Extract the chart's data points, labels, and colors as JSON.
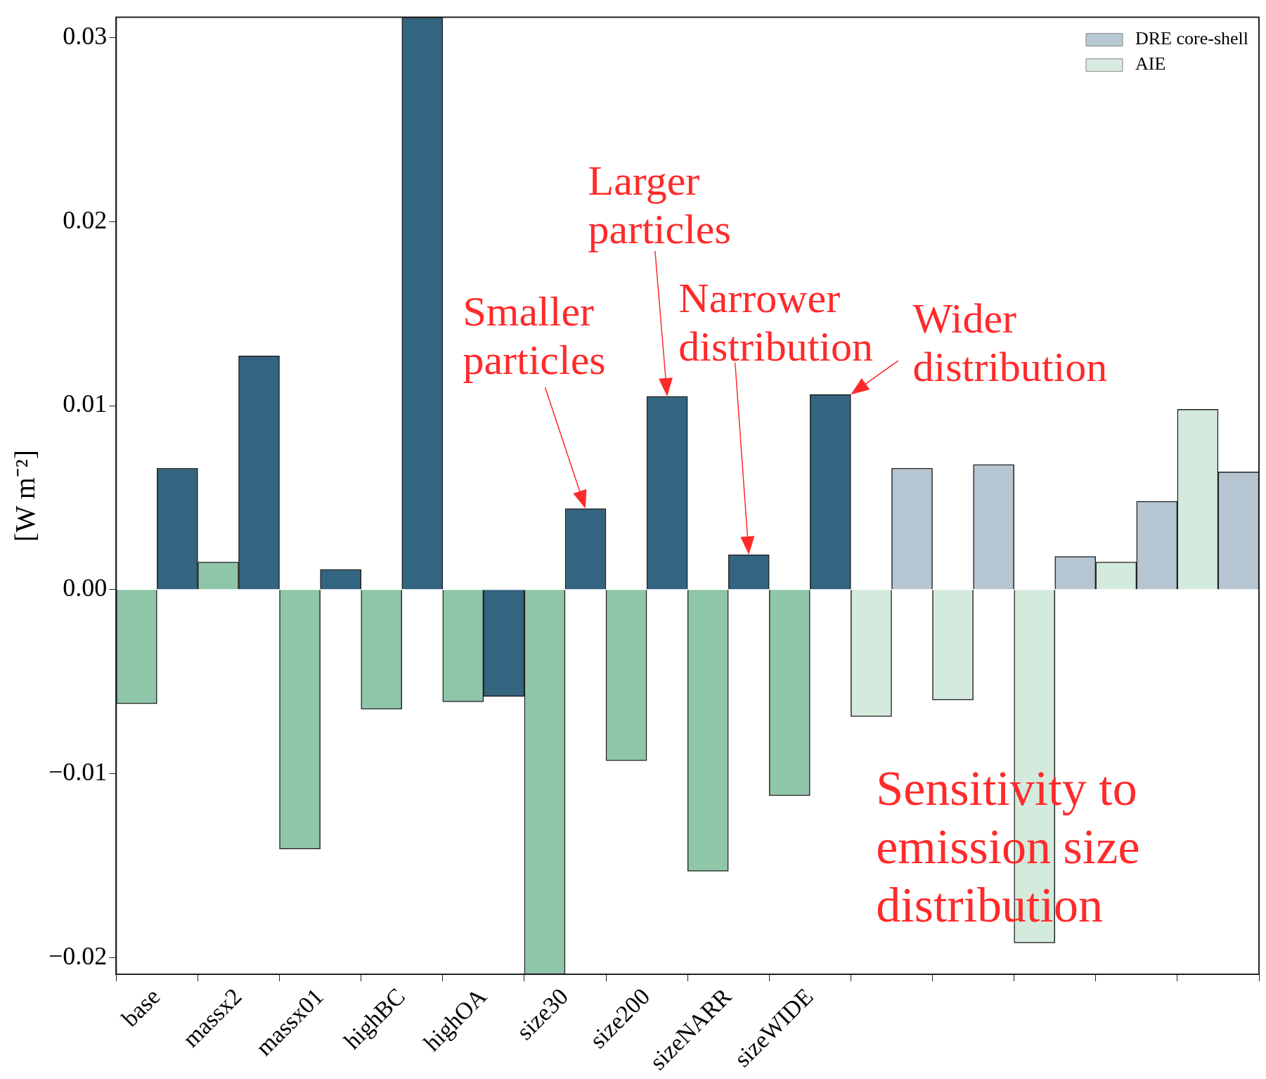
{
  "chart_data": {
    "type": "bar",
    "ylabel": "[W m⁻²]",
    "categories": [
      "base",
      "massx2",
      "massx01",
      "highBC",
      "highOA",
      "size30",
      "size200",
      "sizeNARR",
      "sizeWIDE",
      null,
      null,
      null,
      null,
      null
    ],
    "series": [
      {
        "name": "DRE core-shell",
        "color": "#346580",
        "colors": [
          "#346580",
          "#346580",
          "#346580",
          "#346580",
          "#346580",
          "#346580",
          "#346580",
          "#346580",
          "#346580",
          "#b5c5d2",
          "#b5c5d2",
          "#b5c5d2",
          "#b5c5d2",
          "#b5c5d2"
        ],
        "values": [
          0.0066,
          0.0127,
          0.0011,
          0.0311,
          -0.0058,
          0.0044,
          0.0105,
          0.0019,
          0.0106,
          0.0066,
          0.0068,
          0.0018,
          0.0048,
          0.0064
        ]
      },
      {
        "name": "AIE",
        "color": "#8fc6a9",
        "colors": [
          "#8fc6a9",
          "#8fc6a9",
          "#8fc6a9",
          "#8fc6a9",
          "#8fc6a9",
          "#8fc6a9",
          "#8fc6a9",
          "#8fc6a9",
          "#8fc6a9",
          "#d4eadd",
          "#d4eadd",
          "#d4eadd",
          "#d4eadd",
          "#d4eadd"
        ],
        "values": [
          -0.0062,
          0.0015,
          -0.0141,
          -0.0065,
          -0.0061,
          -0.0209,
          -0.0093,
          -0.0153,
          -0.0112,
          -0.0069,
          -0.006,
          -0.0192,
          0.0015,
          0.0098
        ]
      }
    ],
    "ylim": [
      -0.0209,
      0.0311
    ],
    "yticks": [
      {
        "value": -0.02,
        "label": "−0.02"
      },
      {
        "value": -0.01,
        "label": "−0.01"
      },
      {
        "value": 0,
        "label": "0.00"
      },
      {
        "value": 0.01,
        "label": "0.01"
      },
      {
        "value": 0.02,
        "label": "0.02"
      },
      {
        "value": 0.03,
        "label": "0.03"
      }
    ],
    "legend": "top right",
    "annotations": [
      {
        "text": "Smaller particles",
        "x": "size30",
        "y": 0.0044
      },
      "Larger particles",
      "Narrower distribution",
      {
        "text": "Wider distribution",
        "x": "sizeWIDE",
        "y": 0.0106
      },
      "Sensitivity to emission size distribution"
    ]
  }
}
